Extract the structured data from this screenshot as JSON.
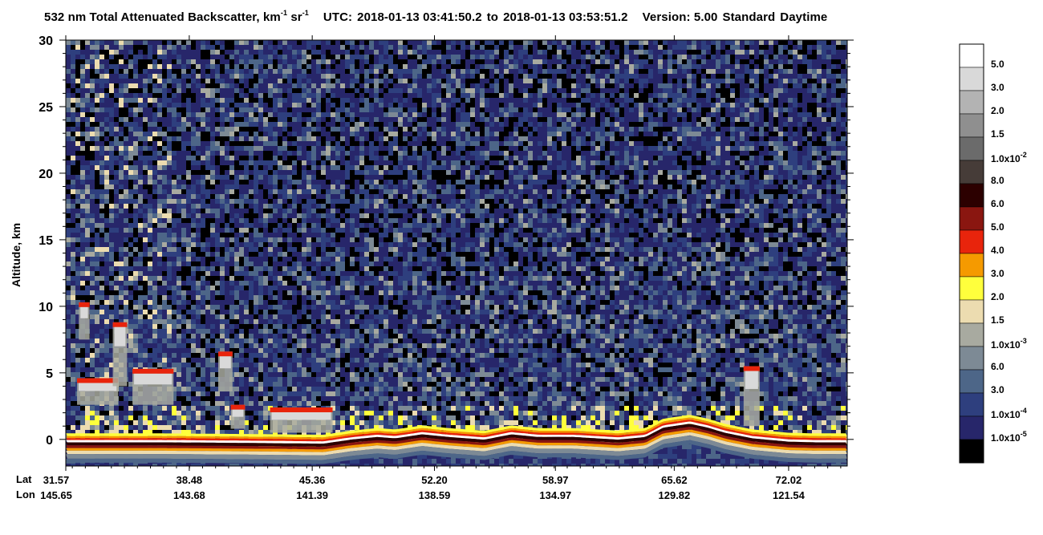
{
  "header": {
    "product": "532 nm Total Attenuated Backscatter, km",
    "unit_exp1": "-1",
    "unit_sr": " sr",
    "unit_exp2": "-1",
    "utc_label": "UTC:",
    "utc_start": "2018-01-13 03:41:50.2",
    "to_label": "to",
    "utc_end": "2018-01-13 03:53:51.2",
    "version_label": "Version: 5.00",
    "standard_label": "Standard",
    "daytime_label": "Daytime"
  },
  "chart_data": {
    "type": "heatmap",
    "ylabel": "Altitude, km",
    "ylim": [
      -2,
      30
    ],
    "yticks": [
      0,
      5,
      10,
      15,
      20,
      25,
      30
    ],
    "x_row_labels": [
      "Lat",
      "Lon"
    ],
    "lat_ticks": [
      "31.57",
      "38.48",
      "45.36",
      "52.20",
      "58.97",
      "65.62",
      "72.02"
    ],
    "lon_ticks": [
      "145.65",
      "143.68",
      "141.39",
      "138.59",
      "134.97",
      "129.82",
      "121.54"
    ],
    "lat_range": [
      31.57,
      75.3
    ],
    "surface_altitude_km": [
      [
        31.57,
        -0.1
      ],
      [
        37.0,
        -0.1
      ],
      [
        42.0,
        -0.15
      ],
      [
        46.0,
        -0.2
      ],
      [
        47.5,
        0.1
      ],
      [
        49.0,
        0.3
      ],
      [
        50.0,
        0.2
      ],
      [
        51.5,
        0.5
      ],
      [
        53.0,
        0.3
      ],
      [
        55.0,
        0.1
      ],
      [
        56.5,
        0.5
      ],
      [
        58.0,
        0.3
      ],
      [
        60.0,
        0.3
      ],
      [
        62.5,
        0.1
      ],
      [
        64.0,
        0.3
      ],
      [
        65.0,
        1.0
      ],
      [
        66.5,
        1.3
      ],
      [
        67.5,
        1.0
      ],
      [
        68.5,
        0.6
      ],
      [
        70.0,
        0.2
      ],
      [
        72.0,
        -0.05
      ],
      [
        73.5,
        -0.1
      ],
      [
        75.3,
        -0.1
      ]
    ],
    "cloud_layers": [
      {
        "lat_start": 32.2,
        "lat_end": 34.5,
        "base_km": 2.6,
        "top_km": 4.6
      },
      {
        "lat_start": 32.3,
        "lat_end": 32.9,
        "base_km": 7.5,
        "top_km": 10.3
      },
      {
        "lat_start": 34.2,
        "lat_end": 35.0,
        "base_km": 4.0,
        "top_km": 8.8
      },
      {
        "lat_start": 35.3,
        "lat_end": 37.6,
        "base_km": 2.6,
        "top_km": 5.3
      },
      {
        "lat_start": 40.1,
        "lat_end": 40.9,
        "base_km": 3.6,
        "top_km": 6.6
      },
      {
        "lat_start": 40.8,
        "lat_end": 41.6,
        "base_km": 0.8,
        "top_km": 2.6
      },
      {
        "lat_start": 43.0,
        "lat_end": 46.5,
        "base_km": 0.5,
        "top_km": 2.4
      },
      {
        "lat_start": 69.5,
        "lat_end": 70.4,
        "base_km": 1.0,
        "top_km": 5.5
      }
    ],
    "colorbar": {
      "labels": [
        {
          "mantissa": "5.0",
          "exp": ""
        },
        {
          "mantissa": "3.0",
          "exp": ""
        },
        {
          "mantissa": "2.0",
          "exp": ""
        },
        {
          "mantissa": "1.5",
          "exp": ""
        },
        {
          "mantissa": "1.0x10",
          "exp": "-2"
        },
        {
          "mantissa": "8.0",
          "exp": ""
        },
        {
          "mantissa": "6.0",
          "exp": ""
        },
        {
          "mantissa": "5.0",
          "exp": ""
        },
        {
          "mantissa": "4.0",
          "exp": ""
        },
        {
          "mantissa": "3.0",
          "exp": ""
        },
        {
          "mantissa": "2.0",
          "exp": ""
        },
        {
          "mantissa": "1.5",
          "exp": ""
        },
        {
          "mantissa": "1.0x10",
          "exp": "-3"
        },
        {
          "mantissa": "6.0",
          "exp": ""
        },
        {
          "mantissa": "3.0",
          "exp": ""
        },
        {
          "mantissa": "1.0x10",
          "exp": "-4"
        },
        {
          "mantissa": "1.0x10",
          "exp": "-5"
        }
      ],
      "colors": [
        "#ffffff",
        "#d9d9d9",
        "#b3b3b3",
        "#8f8f8f",
        "#6b6b6b",
        "#463c38",
        "#2c0000",
        "#8a1610",
        "#e8240c",
        "#f59a00",
        "#ffff3c",
        "#ecdcb0",
        "#a8aaa0",
        "#7d8a95",
        "#4d6688",
        "#2e3f7e",
        "#27266a",
        "#000000"
      ]
    }
  }
}
